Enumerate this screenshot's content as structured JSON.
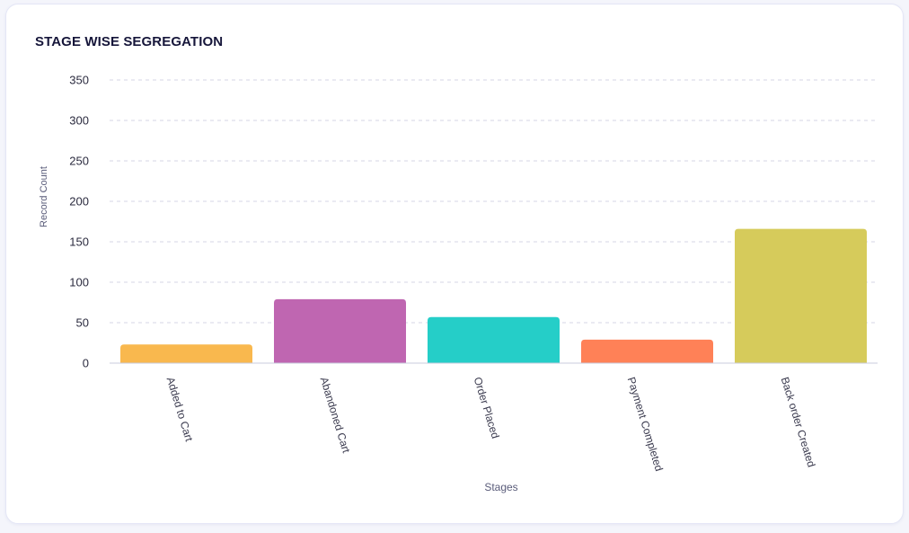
{
  "card": {
    "title": "STAGE WISE SEGREGATION"
  },
  "chart_data": {
    "type": "bar",
    "title": "STAGE WISE SEGREGATION",
    "xlabel": "Stages",
    "ylabel": "Record Count",
    "ylim": [
      0,
      350
    ],
    "yticks": [
      0,
      50,
      100,
      150,
      200,
      250,
      300,
      350
    ],
    "grid": true,
    "categories": [
      "Added to Cart",
      "Abandoned Cart",
      "Order Placed",
      "Payment Completed",
      "Back order Created"
    ],
    "values": [
      23,
      79,
      57,
      29,
      166
    ],
    "colors": [
      "#f9b84e",
      "#bf66b1",
      "#25cec8",
      "#ff8157",
      "#d6cb5b"
    ]
  }
}
